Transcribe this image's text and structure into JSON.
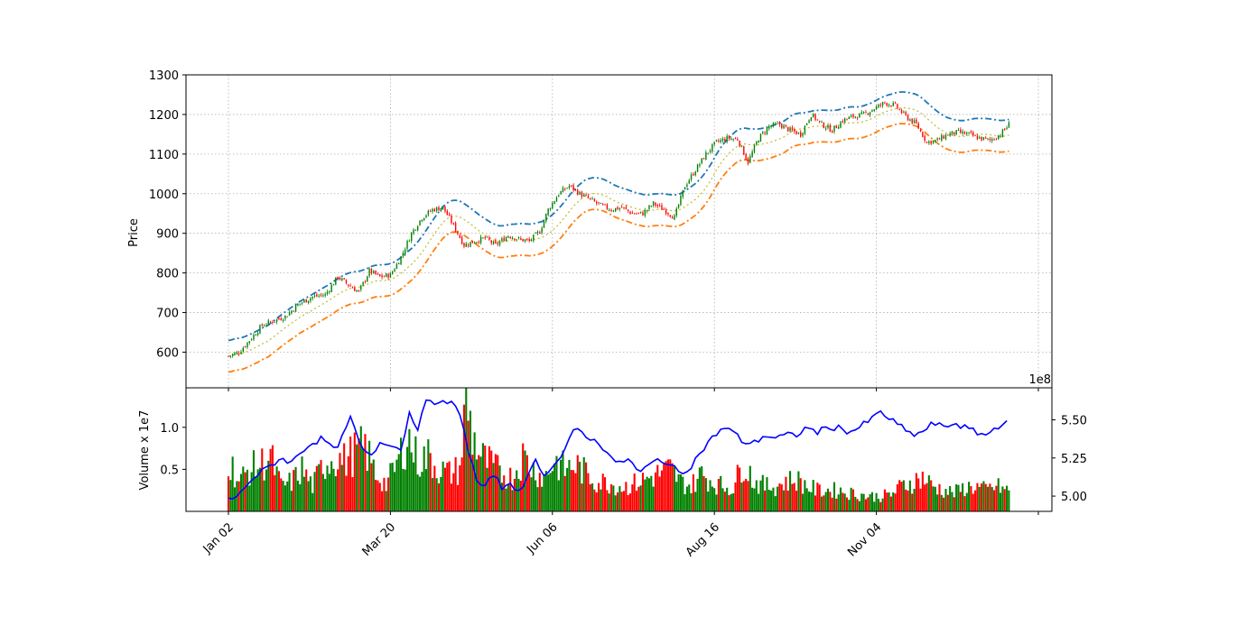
{
  "chart_data": {
    "type": "candlestick",
    "price_panel": {
      "ylabel": "Price",
      "ylim": [
        510,
        1300
      ],
      "yticks": [
        600,
        700,
        800,
        900,
        1000,
        1100,
        1200,
        1300
      ],
      "grid": true,
      "colors": {
        "up": "#008000",
        "down": "#ff0000",
        "upper_band": "#1f77b4",
        "lower_band": "#ff7f0e",
        "mid_band": "#bcbd22"
      },
      "close_anchors": [
        [
          0,
          590
        ],
        [
          5,
          600
        ],
        [
          10,
          630
        ],
        [
          16,
          668
        ],
        [
          22,
          680
        ],
        [
          27,
          690
        ],
        [
          33,
          720
        ],
        [
          40,
          740
        ],
        [
          46,
          745
        ],
        [
          52,
          790
        ],
        [
          57,
          770
        ],
        [
          62,
          752
        ],
        [
          67,
          805
        ],
        [
          72,
          790
        ],
        [
          77,
          795
        ],
        [
          82,
          840
        ],
        [
          87,
          900
        ],
        [
          92,
          940
        ],
        [
          97,
          960
        ],
        [
          102,
          965
        ],
        [
          107,
          920
        ],
        [
          112,
          870
        ],
        [
          117,
          880
        ],
        [
          122,
          888
        ],
        [
          127,
          870
        ],
        [
          133,
          895
        ],
        [
          138,
          885
        ],
        [
          143,
          880
        ],
        [
          148,
          905
        ],
        [
          152,
          960
        ],
        [
          157,
          1000
        ],
        [
          162,
          1020
        ],
        [
          167,
          1000
        ],
        [
          172,
          985
        ],
        [
          177,
          970
        ],
        [
          182,
          960
        ],
        [
          187,
          965
        ],
        [
          192,
          950
        ],
        [
          197,
          950
        ],
        [
          202,
          975
        ],
        [
          207,
          960
        ],
        [
          212,
          940
        ],
        [
          217,
          1020
        ],
        [
          222,
          1060
        ],
        [
          227,
          1100
        ],
        [
          232,
          1130
        ],
        [
          237,
          1140
        ],
        [
          242,
          1138
        ],
        [
          247,
          1080
        ],
        [
          252,
          1140
        ],
        [
          257,
          1170
        ],
        [
          262,
          1175
        ],
        [
          267,
          1160
        ],
        [
          272,
          1150
        ],
        [
          277,
          1200
        ],
        [
          282,
          1175
        ],
        [
          287,
          1160
        ],
        [
          292,
          1185
        ],
        [
          297,
          1195
        ],
        [
          302,
          1200
        ],
        [
          307,
          1215
        ],
        [
          312,
          1230
        ],
        [
          317,
          1222
        ],
        [
          322,
          1195
        ],
        [
          327,
          1175
        ],
        [
          332,
          1130
        ],
        [
          337,
          1135
        ],
        [
          342,
          1150
        ],
        [
          347,
          1155
        ],
        [
          352,
          1150
        ],
        [
          357,
          1140
        ],
        [
          362,
          1135
        ],
        [
          367,
          1150
        ],
        [
          371,
          1175
        ]
      ],
      "band_width": 28,
      "band_upper_offset": 12
    },
    "volume_panel": {
      "ylabel": "Volume x 1e7",
      "scale_label": "1e8",
      "ylim": [
        0.0,
        1.47
      ],
      "yticks": [
        0.5,
        1.0
      ],
      "right_ylim": [
        4.9,
        5.71
      ],
      "right_yticks": [
        "5.00",
        "5.25",
        "5.50"
      ],
      "line_color": "#0000ff",
      "volume_anchors": [
        [
          0,
          0.62
        ],
        [
          5,
          0.35
        ],
        [
          10,
          0.5
        ],
        [
          15,
          0.55
        ],
        [
          20,
          0.65
        ],
        [
          25,
          0.3
        ],
        [
          30,
          0.35
        ],
        [
          35,
          0.5
        ],
        [
          40,
          0.3
        ],
        [
          45,
          0.55
        ],
        [
          50,
          0.65
        ],
        [
          55,
          0.6
        ],
        [
          60,
          0.7
        ],
        [
          65,
          0.75
        ],
        [
          70,
          0.45
        ],
        [
          75,
          0.32
        ],
        [
          80,
          0.55
        ],
        [
          85,
          0.9
        ],
        [
          90,
          0.6
        ],
        [
          95,
          0.65
        ],
        [
          100,
          0.5
        ],
        [
          105,
          0.45
        ],
        [
          110,
          0.5
        ],
        [
          113,
          1.33
        ],
        [
          116,
          0.9
        ],
        [
          120,
          0.65
        ],
        [
          125,
          0.55
        ],
        [
          130,
          0.45
        ],
        [
          135,
          0.4
        ],
        [
          140,
          0.65
        ],
        [
          145,
          0.5
        ],
        [
          150,
          0.4
        ],
        [
          155,
          0.6
        ],
        [
          160,
          0.5
        ],
        [
          165,
          0.55
        ],
        [
          170,
          0.45
        ],
        [
          175,
          0.35
        ],
        [
          180,
          0.35
        ],
        [
          185,
          0.3
        ],
        [
          190,
          0.3
        ],
        [
          195,
          0.35
        ],
        [
          200,
          0.4
        ],
        [
          205,
          0.45
        ],
        [
          210,
          0.5
        ],
        [
          215,
          0.35
        ],
        [
          220,
          0.3
        ],
        [
          225,
          0.45
        ],
        [
          230,
          0.35
        ],
        [
          235,
          0.3
        ],
        [
          240,
          0.28
        ],
        [
          245,
          0.6
        ],
        [
          250,
          0.35
        ],
        [
          255,
          0.3
        ],
        [
          260,
          0.3
        ],
        [
          265,
          0.35
        ],
        [
          270,
          0.38
        ],
        [
          275,
          0.3
        ],
        [
          280,
          0.25
        ],
        [
          285,
          0.25
        ],
        [
          290,
          0.25
        ],
        [
          295,
          0.22
        ],
        [
          300,
          0.2
        ],
        [
          305,
          0.18
        ],
        [
          310,
          0.18
        ],
        [
          315,
          0.2
        ],
        [
          320,
          0.3
        ],
        [
          325,
          0.35
        ],
        [
          330,
          0.4
        ],
        [
          335,
          0.3
        ],
        [
          340,
          0.25
        ],
        [
          345,
          0.22
        ],
        [
          350,
          0.28
        ],
        [
          355,
          0.3
        ],
        [
          360,
          0.25
        ],
        [
          365,
          0.3
        ],
        [
          370,
          0.25
        ]
      ],
      "line_anchors": [
        [
          0,
          4.98
        ],
        [
          5,
          5.0
        ],
        [
          10,
          5.1
        ],
        [
          15,
          5.15
        ],
        [
          20,
          5.2
        ],
        [
          25,
          5.25
        ],
        [
          30,
          5.22
        ],
        [
          35,
          5.3
        ],
        [
          40,
          5.35
        ],
        [
          45,
          5.38
        ],
        [
          50,
          5.3
        ],
        [
          55,
          5.4
        ],
        [
          58,
          5.52
        ],
        [
          62,
          5.35
        ],
        [
          67,
          5.25
        ],
        [
          72,
          5.35
        ],
        [
          77,
          5.35
        ],
        [
          82,
          5.3
        ],
        [
          86,
          5.55
        ],
        [
          90,
          5.45
        ],
        [
          95,
          5.65
        ],
        [
          100,
          5.6
        ],
        [
          105,
          5.62
        ],
        [
          110,
          5.55
        ],
        [
          114,
          5.3
        ],
        [
          118,
          5.1
        ],
        [
          122,
          5.05
        ],
        [
          126,
          5.15
        ],
        [
          130,
          5.05
        ],
        [
          134,
          5.1
        ],
        [
          139,
          5.0
        ],
        [
          145,
          5.25
        ],
        [
          150,
          5.15
        ],
        [
          155,
          5.2
        ],
        [
          160,
          5.3
        ],
        [
          165,
          5.45
        ],
        [
          170,
          5.4
        ],
        [
          175,
          5.35
        ],
        [
          180,
          5.3
        ],
        [
          185,
          5.2
        ],
        [
          190,
          5.25
        ],
        [
          195,
          5.15
        ],
        [
          200,
          5.2
        ],
        [
          205,
          5.25
        ],
        [
          210,
          5.2
        ],
        [
          215,
          5.15
        ],
        [
          220,
          5.2
        ],
        [
          225,
          5.3
        ],
        [
          230,
          5.38
        ],
        [
          235,
          5.45
        ],
        [
          240,
          5.42
        ],
        [
          245,
          5.35
        ],
        [
          250,
          5.35
        ],
        [
          255,
          5.4
        ],
        [
          260,
          5.38
        ],
        [
          265,
          5.4
        ],
        [
          270,
          5.4
        ],
        [
          275,
          5.45
        ],
        [
          280,
          5.42
        ],
        [
          285,
          5.45
        ],
        [
          290,
          5.45
        ],
        [
          295,
          5.42
        ],
        [
          300,
          5.45
        ],
        [
          305,
          5.5
        ],
        [
          310,
          5.55
        ],
        [
          315,
          5.5
        ],
        [
          320,
          5.45
        ],
        [
          325,
          5.4
        ],
        [
          330,
          5.42
        ],
        [
          335,
          5.48
        ],
        [
          340,
          5.45
        ],
        [
          345,
          5.48
        ],
        [
          350,
          5.45
        ],
        [
          355,
          5.42
        ],
        [
          360,
          5.4
        ],
        [
          365,
          5.45
        ],
        [
          370,
          5.5
        ]
      ]
    },
    "x": {
      "n_days": 372,
      "tick_labels": [
        "Jan 02",
        "Mar 20",
        "Jun 06",
        "Aug 16",
        "Nov 04",
        ""
      ],
      "tick_days": [
        0,
        77,
        154,
        231,
        308,
        385
      ]
    }
  }
}
